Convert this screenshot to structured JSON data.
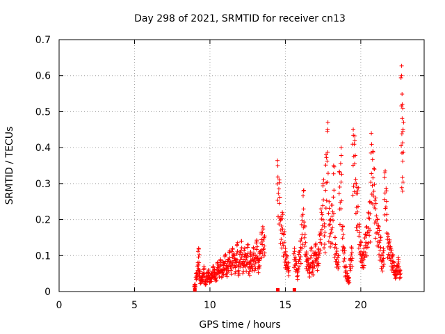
{
  "chart_data": {
    "type": "scatter",
    "title": "Day 298 of 2021, SRMTID for receiver cn13",
    "xlabel": "GPS time / hours",
    "ylabel": "SRMTID / TECUs",
    "xlim": [
      0,
      24.2
    ],
    "ylim": [
      0,
      0.7
    ],
    "xticks": [
      0,
      5,
      10,
      15,
      20
    ],
    "yticks": [
      0,
      0.1,
      0.2,
      0.3,
      0.4,
      0.5,
      0.6,
      0.7
    ],
    "xtick_labels": [
      "0",
      "5",
      "10",
      "15",
      "20"
    ],
    "ytick_labels": [
      "0",
      "0.1",
      "0.2",
      "0.3",
      "0.4",
      "0.5",
      "0.6",
      "0.7"
    ],
    "grid": true,
    "marker": "+",
    "color": "#ff0000",
    "series": [
      {
        "name": "SRMTID",
        "x": [
          9.0,
          9.1,
          9.2,
          9.25,
          9.3,
          9.4,
          9.5,
          9.6,
          9.7,
          9.8,
          9.9,
          10.0,
          10.1,
          10.2,
          10.3,
          10.4,
          10.5,
          10.6,
          10.7,
          10.8,
          10.9,
          11.0,
          11.1,
          11.2,
          11.3,
          11.4,
          11.5,
          11.6,
          11.7,
          11.8,
          11.9,
          12.0,
          12.1,
          12.2,
          12.3,
          12.4,
          12.5,
          12.6,
          12.7,
          12.8,
          12.9,
          13.0,
          13.1,
          13.2,
          13.3,
          13.4,
          13.5,
          13.6,
          14.5,
          14.6,
          14.7,
          14.8,
          14.9,
          15.0,
          15.1,
          15.2,
          15.6,
          15.7,
          15.8,
          15.9,
          16.0,
          16.1,
          16.2,
          16.3,
          16.4,
          16.5,
          16.6,
          16.7,
          16.8,
          16.9,
          17.0,
          17.1,
          17.2,
          17.3,
          17.4,
          17.5,
          17.6,
          17.7,
          17.8,
          17.9,
          18.0,
          18.1,
          18.2,
          18.3,
          18.4,
          18.5,
          18.6,
          18.7,
          18.8,
          18.9,
          19.0,
          19.1,
          19.2,
          19.3,
          19.4,
          19.5,
          19.6,
          19.7,
          19.8,
          19.9,
          20.0,
          20.1,
          20.2,
          20.3,
          20.4,
          20.5,
          20.6,
          20.7,
          20.8,
          20.9,
          21.0,
          21.1,
          21.2,
          21.3,
          21.4,
          21.5,
          21.6,
          21.7,
          21.8,
          21.9,
          22.0,
          22.1,
          22.2,
          22.3,
          22.4,
          22.5,
          22.6,
          22.7,
          22.75,
          22.8
        ],
        "y": [
          0.02,
          0.05,
          0.08,
          0.12,
          0.06,
          0.04,
          0.05,
          0.07,
          0.03,
          0.05,
          0.06,
          0.04,
          0.05,
          0.07,
          0.06,
          0.05,
          0.08,
          0.07,
          0.09,
          0.06,
          0.08,
          0.1,
          0.07,
          0.09,
          0.11,
          0.08,
          0.12,
          0.1,
          0.09,
          0.13,
          0.08,
          0.11,
          0.14,
          0.09,
          0.12,
          0.1,
          0.13,
          0.08,
          0.11,
          0.09,
          0.12,
          0.1,
          0.14,
          0.09,
          0.11,
          0.16,
          0.18,
          0.15,
          0.35,
          0.31,
          0.2,
          0.22,
          0.16,
          0.12,
          0.1,
          0.08,
          0.12,
          0.09,
          0.06,
          0.11,
          0.14,
          0.21,
          0.28,
          0.18,
          0.11,
          0.09,
          0.07,
          0.12,
          0.08,
          0.11,
          0.13,
          0.1,
          0.12,
          0.16,
          0.22,
          0.3,
          0.18,
          0.38,
          0.45,
          0.25,
          0.2,
          0.24,
          0.35,
          0.15,
          0.12,
          0.1,
          0.33,
          0.4,
          0.18,
          0.12,
          0.07,
          0.05,
          0.04,
          0.09,
          0.12,
          0.45,
          0.42,
          0.3,
          0.28,
          0.18,
          0.14,
          0.1,
          0.12,
          0.16,
          0.18,
          0.22,
          0.25,
          0.44,
          0.39,
          0.34,
          0.26,
          0.2,
          0.18,
          0.15,
          0.1,
          0.12,
          0.33,
          0.28,
          0.16,
          0.14,
          0.12,
          0.1,
          0.08,
          0.06,
          0.07,
          0.09,
          0.06,
          0.6,
          0.52,
          0.45
        ],
        "zero_markers_x": [
          9.0,
          14.5,
          15.6
        ]
      }
    ]
  }
}
